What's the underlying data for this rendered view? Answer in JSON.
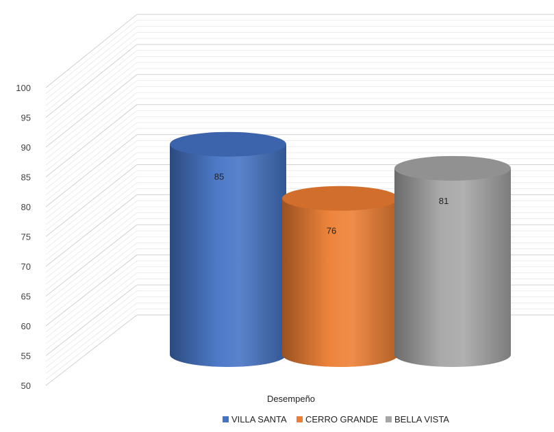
{
  "chart_data": {
    "type": "bar",
    "style": "3d-cylinder",
    "categories": [
      "Desempeño"
    ],
    "xlabel": "Desempeño",
    "ylabel": "",
    "ylim": [
      50,
      100
    ],
    "yticks": [
      50,
      55,
      60,
      65,
      70,
      75,
      80,
      85,
      90,
      95,
      100
    ],
    "grid": true,
    "legend_position": "bottom",
    "series": [
      {
        "name": "VILLA SANTA",
        "values": [
          85
        ],
        "color": "#4472C4",
        "label": "85"
      },
      {
        "name": "CERRO GRANDE",
        "values": [
          76
        ],
        "color": "#ED7D31",
        "label": "76"
      },
      {
        "name": "BELLA VISTA",
        "values": [
          81
        ],
        "color": "#A5A5A5",
        "label": "81"
      }
    ]
  }
}
